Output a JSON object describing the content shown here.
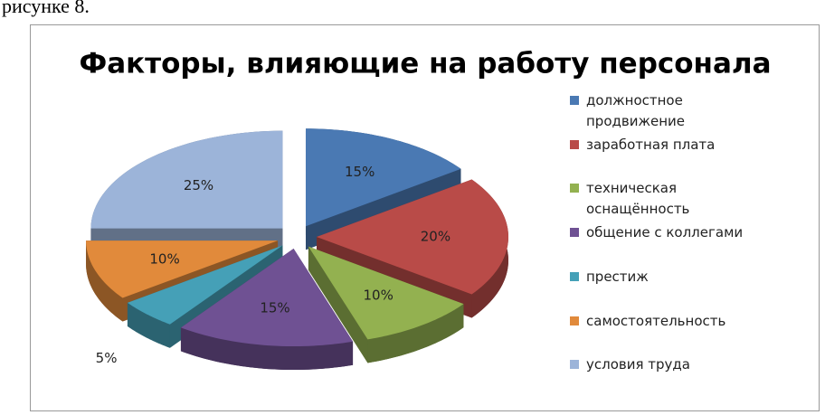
{
  "document_text": "рисунке 8.",
  "chart_data": {
    "type": "pie",
    "title": "Факторы, влияющие на работу персонала",
    "categories": [
      "должностное продвижение",
      "заработная плата",
      "техническая оснащённость",
      "общение с коллегами",
      "престиж",
      "самостоятельность",
      "условия труда"
    ],
    "values": [
      15,
      20,
      10,
      15,
      5,
      10,
      25
    ],
    "value_labels": [
      "15%",
      "20%",
      "10%",
      "15%",
      "5%",
      "10%",
      "25%"
    ],
    "colors": [
      "#4a79b3",
      "#b94b48",
      "#93b150",
      "#6f5193",
      "#45a0b7",
      "#e18a3b",
      "#9cb4d9"
    ],
    "legend": "right"
  }
}
